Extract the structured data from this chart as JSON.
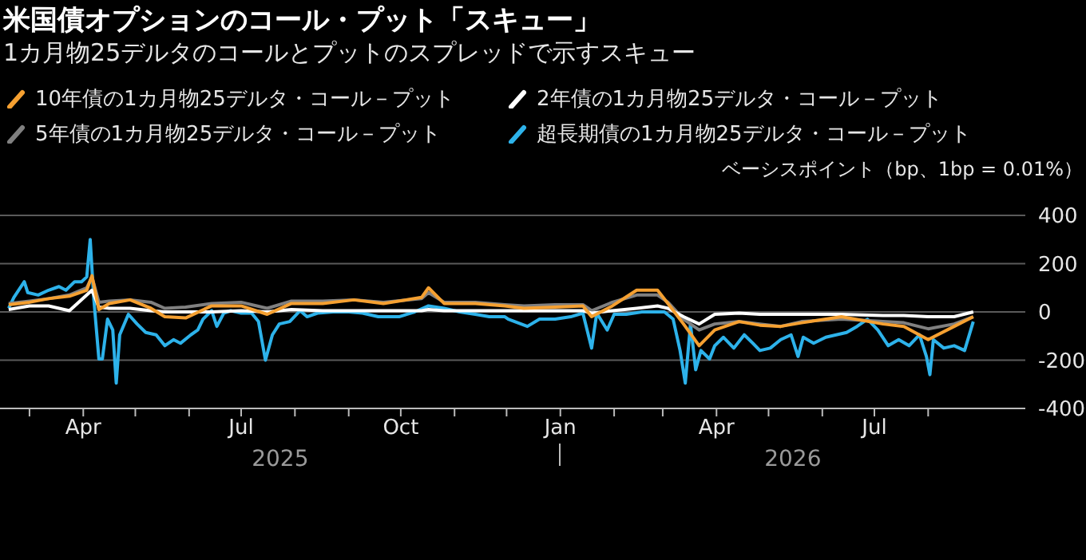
{
  "chart_data": {
    "type": "line",
    "title": "米国債オプションのコール・プット「スキュー」",
    "subtitle": "1カ月物25デルタのコールとプットのスプレッドで示すスキュー",
    "ylabel": "ベーシスポイント（bp、1bp = 0.01%）",
    "x": [
      "2025-02-17",
      "2025-03-01",
      "2025-03-12",
      "2025-03-24",
      "2025-04-03",
      "2025-04-06",
      "2025-04-10",
      "2025-04-16",
      "2025-04-28",
      "2025-05-10",
      "2025-05-18",
      "2025-05-30",
      "2025-06-14",
      "2025-07-01",
      "2025-07-16",
      "2025-07-30",
      "2025-08-17",
      "2025-09-04",
      "2025-09-21",
      "2025-10-13",
      "2025-10-17",
      "2025-10-26",
      "2025-11-13",
      "2025-11-30",
      "2025-12-11",
      "2025-12-29",
      "2026-01-14",
      "2026-01-19",
      "2026-01-31",
      "2026-02-14",
      "2026-02-26",
      "2026-03-04",
      "2026-03-13",
      "2026-03-22",
      "2026-03-31",
      "2026-04-14",
      "2026-04-26",
      "2026-05-08",
      "2026-05-20",
      "2026-06-12",
      "2026-07-06",
      "2026-07-18",
      "2026-08-01",
      "2026-08-16",
      "2026-08-27"
    ],
    "series": [
      {
        "name": "10年債の1カ月物25デルタ・コール－プット",
        "color": "#f5a031",
        "values": [
          30,
          40,
          55,
          65,
          90,
          150,
          10,
          35,
          50,
          15,
          -20,
          -25,
          25,
          25,
          -10,
          35,
          35,
          50,
          35,
          60,
          100,
          35,
          35,
          25,
          15,
          20,
          25,
          -20,
          25,
          90,
          90,
          35,
          -50,
          -140,
          -75,
          -40,
          -55,
          -60,
          -45,
          -20,
          -50,
          -60,
          -115,
          -60,
          -20
        ]
      },
      {
        "name": "2年債の1カ月物25デルタ・コール－プット",
        "color": "#ffffff",
        "values": [
          10,
          25,
          25,
          5,
          70,
          90,
          20,
          15,
          15,
          5,
          0,
          0,
          0,
          5,
          0,
          10,
          5,
          5,
          5,
          5,
          10,
          5,
          5,
          5,
          5,
          5,
          5,
          -5,
          5,
          15,
          25,
          15,
          -20,
          -50,
          -10,
          -5,
          -10,
          -10,
          -10,
          -10,
          -15,
          -15,
          -20,
          -20,
          0
        ]
      },
      {
        "name": "5年債の1カ月物25デルタ・コール－プット",
        "color": "#808080",
        "values": [
          35,
          45,
          55,
          70,
          100,
          145,
          40,
          45,
          50,
          40,
          15,
          20,
          35,
          40,
          15,
          45,
          45,
          50,
          40,
          55,
          80,
          40,
          40,
          30,
          25,
          30,
          30,
          5,
          40,
          70,
          70,
          40,
          -30,
          -75,
          -50,
          -40,
          -50,
          -60,
          -40,
          -30,
          -40,
          -45,
          -70,
          -50,
          -20
        ]
      },
      {
        "name": "超長期債の1カ月物25デルタ・コール－プット",
        "color": "#2db2ea",
        "x": [
          "2025-02-17",
          "2025-02-20",
          "2025-02-26",
          "2025-02-28",
          "2025-03-06",
          "2025-03-12",
          "2025-03-18",
          "2025-03-22",
          "2025-03-27",
          "2025-03-31",
          "2025-04-03",
          "2025-04-05",
          "2025-04-07",
          "2025-04-10",
          "2025-04-12",
          "2025-04-15",
          "2025-04-18",
          "2025-04-20",
          "2025-04-22",
          "2025-04-27",
          "2025-05-02",
          "2025-05-07",
          "2025-05-13",
          "2025-05-18",
          "2025-05-23",
          "2025-05-27",
          "2025-06-02",
          "2025-06-06",
          "2025-06-09",
          "2025-06-14",
          "2025-06-17",
          "2025-06-21",
          "2025-06-25",
          "2025-07-01",
          "2025-07-07",
          "2025-07-11",
          "2025-07-15",
          "2025-07-19",
          "2025-07-23",
          "2025-07-29",
          "2025-08-04",
          "2025-08-08",
          "2025-08-14",
          "2025-08-23",
          "2025-09-01",
          "2025-09-09",
          "2025-09-18",
          "2025-09-30",
          "2025-10-09",
          "2025-10-17",
          "2025-10-26",
          "2025-11-04",
          "2025-11-13",
          "2025-11-21",
          "2025-11-30",
          "2025-12-02",
          "2025-12-13",
          "2025-12-20",
          "2025-12-29",
          "2026-01-07",
          "2026-01-14",
          "2026-01-19",
          "2026-01-22",
          "2026-01-28",
          "2026-02-01",
          "2026-02-08",
          "2026-02-17",
          "2026-02-26",
          "2026-03-02",
          "2026-03-07",
          "2026-03-11",
          "2026-03-14",
          "2026-03-17",
          "2026-03-20",
          "2026-03-23",
          "2026-03-28",
          "2026-03-31",
          "2026-04-05",
          "2026-04-11",
          "2026-04-17",
          "2026-04-22",
          "2026-04-26",
          "2026-05-02",
          "2026-05-08",
          "2026-05-14",
          "2026-05-18",
          "2026-05-21",
          "2026-05-27",
          "2026-06-03",
          "2026-06-09",
          "2026-06-15",
          "2026-06-21",
          "2026-06-27",
          "2026-07-03",
          "2026-07-09",
          "2026-07-15",
          "2026-07-21",
          "2026-07-27",
          "2026-07-31",
          "2026-08-02",
          "2026-08-04",
          "2026-08-10",
          "2026-08-16",
          "2026-08-22",
          "2026-08-27"
        ],
        "values": [
          15,
          60,
          125,
          80,
          70,
          90,
          105,
          90,
          125,
          125,
          145,
          300,
          60,
          -195,
          -195,
          -30,
          -75,
          -295,
          -95,
          -10,
          -50,
          -85,
          -95,
          -140,
          -115,
          -130,
          -95,
          -75,
          -30,
          5,
          -60,
          -5,
          5,
          -5,
          -5,
          -40,
          -200,
          -95,
          -50,
          -40,
          5,
          -20,
          -5,
          0,
          0,
          -5,
          -20,
          -20,
          0,
          25,
          15,
          0,
          -10,
          -20,
          -20,
          -30,
          -60,
          -30,
          -30,
          -20,
          -5,
          -150,
          -5,
          -75,
          -10,
          -10,
          0,
          0,
          0,
          -30,
          -160,
          -295,
          -50,
          -240,
          -160,
          -195,
          -140,
          -105,
          -150,
          -95,
          -130,
          -160,
          -150,
          -115,
          -95,
          -185,
          -105,
          -130,
          -105,
          -95,
          -85,
          -60,
          -30,
          -75,
          -140,
          -115,
          -140,
          -95,
          -185,
          -260,
          -115,
          -150,
          -140,
          -160,
          -40
        ]
      }
    ],
    "xlim": [
      "2025-02-12",
      "2026-09-26"
    ],
    "xticks": [
      {
        "value": "2025-03-01",
        "label": null
      },
      {
        "value": "2025-04-01",
        "label": "Apr"
      },
      {
        "value": "2025-05-01",
        "label": null
      },
      {
        "value": "2025-06-01",
        "label": null
      },
      {
        "value": "2025-07-01",
        "label": "Jul"
      },
      {
        "value": "2025-08-01",
        "label": null
      },
      {
        "value": "2025-09-01",
        "label": null
      },
      {
        "value": "2025-10-01",
        "label": "Oct"
      },
      {
        "value": "2025-11-01",
        "label": null
      },
      {
        "value": "2025-12-01",
        "label": null
      },
      {
        "value": "2026-01-01",
        "label": "Jan"
      },
      {
        "value": "2026-02-01",
        "label": null
      },
      {
        "value": "2026-03-01",
        "label": null
      },
      {
        "value": "2026-04-01",
        "label": "Apr"
      },
      {
        "value": "2026-05-01",
        "label": null
      },
      {
        "value": "2026-06-01",
        "label": null
      },
      {
        "value": "2026-07-01",
        "label": "Jul"
      },
      {
        "value": "2026-08-01",
        "label": null
      }
    ],
    "ylim": [
      -400,
      400
    ],
    "yticks": [
      -400,
      -200,
      0,
      200,
      400
    ],
    "grid": "y",
    "legend": "top left",
    "annotations": [
      "2025",
      "2026"
    ]
  }
}
